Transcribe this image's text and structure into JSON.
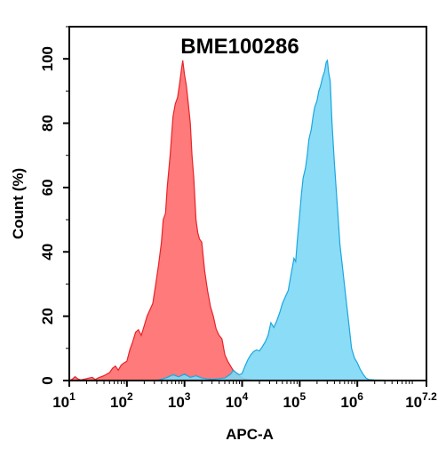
{
  "chart_data": {
    "type": "area",
    "title": "BME100286",
    "xlabel": "APC-A",
    "ylabel": "Count  (%)",
    "xscale": "log",
    "xlim": [
      1,
      7.2
    ],
    "ylim": [
      0,
      110
    ],
    "grid": false,
    "legend": "none",
    "x_ticks": [
      {
        "base": "10",
        "exp": "1",
        "value": 1
      },
      {
        "base": "10",
        "exp": "2",
        "value": 2
      },
      {
        "base": "10",
        "exp": "3",
        "value": 3
      },
      {
        "base": "10",
        "exp": "4",
        "value": 4
      },
      {
        "base": "10",
        "exp": "5",
        "value": 5
      },
      {
        "base": "10",
        "exp": "6",
        "value": 6
      },
      {
        "base": "10",
        "exp": "7.2",
        "value": 7.2
      }
    ],
    "y_ticks": [
      "0",
      "20",
      "40",
      "60",
      "80",
      "100"
    ],
    "series": [
      {
        "color": "#ff7a7a",
        "stroke": "#e8232a",
        "points": [
          [
            1.0,
            0
          ],
          [
            1.05,
            0.4
          ],
          [
            1.1,
            1.2
          ],
          [
            1.15,
            0.5
          ],
          [
            1.2,
            0.2
          ],
          [
            1.3,
            0.6
          ],
          [
            1.4,
            1.0
          ],
          [
            1.45,
            0.3
          ],
          [
            1.5,
            0.8
          ],
          [
            1.6,
            1.5
          ],
          [
            1.7,
            2.5
          ],
          [
            1.75,
            3.8
          ],
          [
            1.8,
            4.5
          ],
          [
            1.85,
            3.2
          ],
          [
            1.9,
            4.8
          ],
          [
            1.95,
            5.5
          ],
          [
            2.0,
            6.0
          ],
          [
            2.05,
            9.5
          ],
          [
            2.1,
            12.0
          ],
          [
            2.15,
            15.0
          ],
          [
            2.2,
            15.8
          ],
          [
            2.25,
            14.0
          ],
          [
            2.3,
            17.0
          ],
          [
            2.35,
            20.0
          ],
          [
            2.4,
            22.0
          ],
          [
            2.45,
            24.0
          ],
          [
            2.5,
            30.0
          ],
          [
            2.55,
            36.0
          ],
          [
            2.6,
            43.0
          ],
          [
            2.63,
            50.0
          ],
          [
            2.67,
            52.0
          ],
          [
            2.7,
            60.0
          ],
          [
            2.75,
            70.0
          ],
          [
            2.8,
            82.0
          ],
          [
            2.84,
            86.0
          ],
          [
            2.88,
            88.0
          ],
          [
            2.92,
            93.0
          ],
          [
            2.95,
            97.0
          ],
          [
            2.97,
            99.5
          ],
          [
            3.0,
            95.0
          ],
          [
            3.03,
            92.0
          ],
          [
            3.06,
            87.0
          ],
          [
            3.1,
            80.0
          ],
          [
            3.13,
            70.0
          ],
          [
            3.16,
            63.0
          ],
          [
            3.2,
            50.0
          ],
          [
            3.23,
            46.0
          ],
          [
            3.26,
            44.0
          ],
          [
            3.3,
            43.0
          ],
          [
            3.35,
            34.0
          ],
          [
            3.4,
            28.0
          ],
          [
            3.45,
            23.0
          ],
          [
            3.5,
            20.0
          ],
          [
            3.55,
            16.0
          ],
          [
            3.6,
            14.0
          ],
          [
            3.65,
            13.0
          ],
          [
            3.7,
            8.0
          ],
          [
            3.75,
            6.0
          ],
          [
            3.8,
            4.5
          ],
          [
            3.85,
            3.0
          ],
          [
            3.9,
            2.0
          ],
          [
            3.95,
            1.5
          ],
          [
            4.0,
            0.8
          ],
          [
            4.1,
            0.3
          ],
          [
            4.2,
            0
          ]
        ]
      },
      {
        "color": "#7ed8f5",
        "stroke": "#1aa7e0",
        "points": [
          [
            2.5,
            0
          ],
          [
            2.6,
            0.4
          ],
          [
            2.7,
            1.0
          ],
          [
            2.8,
            1.8
          ],
          [
            2.9,
            1.2
          ],
          [
            3.0,
            2.0
          ],
          [
            3.1,
            1.0
          ],
          [
            3.2,
            1.5
          ],
          [
            3.3,
            0.8
          ],
          [
            3.4,
            0.5
          ],
          [
            3.5,
            0.4
          ],
          [
            3.6,
            0.6
          ],
          [
            3.7,
            0.8
          ],
          [
            3.8,
            2.0
          ],
          [
            3.85,
            3.2
          ],
          [
            3.9,
            2.4
          ],
          [
            3.95,
            1.8
          ],
          [
            4.0,
            2.2
          ],
          [
            4.05,
            4.5
          ],
          [
            4.1,
            6.5
          ],
          [
            4.15,
            8.0
          ],
          [
            4.2,
            9.0
          ],
          [
            4.25,
            9.5
          ],
          [
            4.3,
            9.2
          ],
          [
            4.35,
            10.5
          ],
          [
            4.4,
            12.0
          ],
          [
            4.45,
            14.0
          ],
          [
            4.5,
            18.0
          ],
          [
            4.55,
            16.5
          ],
          [
            4.6,
            18.5
          ],
          [
            4.65,
            21.0
          ],
          [
            4.7,
            24.0
          ],
          [
            4.75,
            26.0
          ],
          [
            4.8,
            28.0
          ],
          [
            4.85,
            33.0
          ],
          [
            4.9,
            38.0
          ],
          [
            4.93,
            37.0
          ],
          [
            4.96,
            44.0
          ],
          [
            5.0,
            52.0
          ],
          [
            5.03,
            58.0
          ],
          [
            5.06,
            63.0
          ],
          [
            5.1,
            66.0
          ],
          [
            5.13,
            70.0
          ],
          [
            5.16,
            75.0
          ],
          [
            5.2,
            78.0
          ],
          [
            5.23,
            82.0
          ],
          [
            5.26,
            85.0
          ],
          [
            5.3,
            87.0
          ],
          [
            5.33,
            90.0
          ],
          [
            5.36,
            91.5
          ],
          [
            5.38,
            93.0
          ],
          [
            5.4,
            94.5
          ],
          [
            5.43,
            96.0
          ],
          [
            5.46,
            99.0
          ],
          [
            5.48,
            99.5
          ],
          [
            5.5,
            96.0
          ],
          [
            5.53,
            93.0
          ],
          [
            5.56,
            80.0
          ],
          [
            5.6,
            68.0
          ],
          [
            5.65,
            55.0
          ],
          [
            5.7,
            42.0
          ],
          [
            5.75,
            34.0
          ],
          [
            5.8,
            26.0
          ],
          [
            5.85,
            18.0
          ],
          [
            5.9,
            10.0
          ],
          [
            5.95,
            7.0
          ],
          [
            6.0,
            5.5
          ],
          [
            6.05,
            3.5
          ],
          [
            6.1,
            2.0
          ],
          [
            6.15,
            0.8
          ],
          [
            6.2,
            0.3
          ],
          [
            6.3,
            0.2
          ],
          [
            6.5,
            0.1
          ],
          [
            6.8,
            0.1
          ],
          [
            7.0,
            0
          ]
        ]
      }
    ]
  }
}
